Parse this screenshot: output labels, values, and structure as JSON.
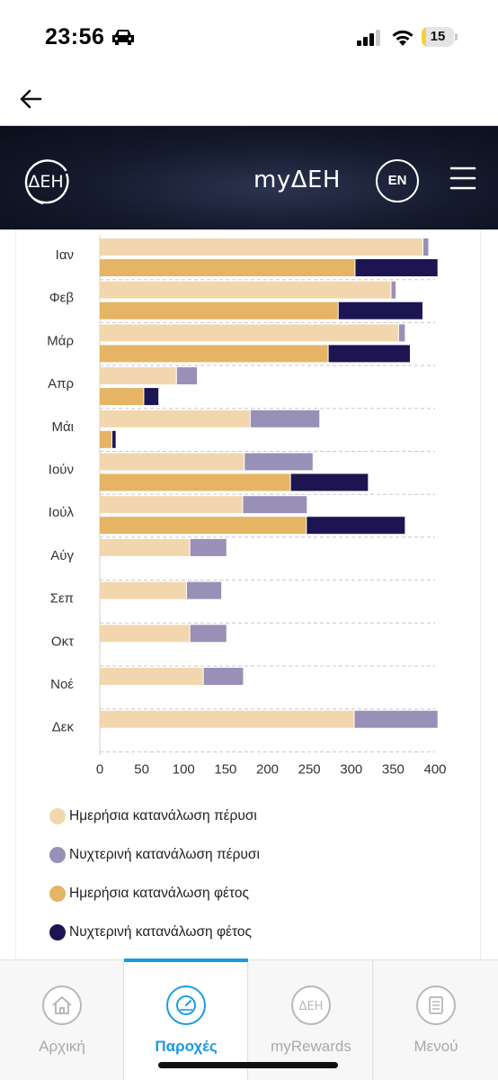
{
  "status_bar": {
    "time": "23:56",
    "battery_level": "15",
    "battery_fraction": 0.15,
    "icons": [
      "car-icon",
      "signal-icon",
      "wifi-icon",
      "battery-icon"
    ]
  },
  "nav": {
    "back_icon": "arrow-left-icon"
  },
  "header": {
    "logo_text": "ΔΕΗ",
    "title": "myΔΕΗ",
    "lang_button": "EN",
    "menu_icon": "hamburger-icon",
    "colors": {
      "background": "#0e1424",
      "text": "#ffffff"
    }
  },
  "chart_data": {
    "type": "bar",
    "orientation": "horizontal",
    "categories": [
      "Ιαν",
      "Φεβ",
      "Μάρ",
      "Απρ",
      "Μάι",
      "Ιούν",
      "Ιούλ",
      "Αύγ",
      "Σεπ",
      "Οκτ",
      "Νοέ",
      "Δεκ"
    ],
    "groups": [
      {
        "stack": "last_year",
        "series": [
          {
            "name": "Ημερήσια κατανάλωση πέρυσι",
            "color": "#f2d7ae",
            "values": [
              386,
              348,
              357,
              92,
              180,
              173,
              171,
              108,
              104,
              108,
              124,
              304
            ]
          },
          {
            "name": "Νυχτερινή κατανάλωση πέρυσι",
            "color": "#9890b6",
            "values": [
              7,
              6,
              8,
              25,
              83,
              82,
              77,
              44,
              42,
              44,
              48,
              100
            ]
          }
        ]
      },
      {
        "stack": "this_year",
        "series": [
          {
            "name": "Ημερήσια κατανάλωση φέτος",
            "color": "#e5b464",
            "values": [
              305,
              285,
              273,
              53,
              15,
              228,
              247,
              null,
              null,
              null,
              null,
              null
            ]
          },
          {
            "name": "Νυχτερινή κατανάλωση φέτος",
            "color": "#1d1552",
            "values": [
              99,
              101,
              98,
              18,
              5,
              93,
              118,
              null,
              null,
              null,
              null,
              null
            ]
          }
        ]
      }
    ],
    "x_ticks": [
      "0",
      "50",
      "100",
      "150",
      "200",
      "250",
      "300",
      "350",
      "400"
    ],
    "xlim": [
      0,
      400
    ],
    "grid": true,
    "legend": "bottom"
  },
  "legend": [
    {
      "label": "Ημερήσια κατανάλωση πέρυσι",
      "color": "#f2d7ae"
    },
    {
      "label": "Νυχτερινή κατανάλωση πέρυσι",
      "color": "#9890b6"
    },
    {
      "label": "Ημερήσια κατανάλωση φέτος",
      "color": "#e5b464"
    },
    {
      "label": "Νυχτερινή κατανάλωση φέτος",
      "color": "#1d1552"
    }
  ],
  "tabs": [
    {
      "label": "Αρχική",
      "icon": "home-icon",
      "active": false
    },
    {
      "label": "Παροχές",
      "icon": "meter-icon",
      "active": true
    },
    {
      "label": "myRewards",
      "icon": "deh-logo-icon",
      "active": false
    },
    {
      "label": "Μενού",
      "icon": "list-icon",
      "active": false
    }
  ],
  "colors": {
    "accent": "#1a9be0",
    "inactive": "#a9a9a9"
  }
}
